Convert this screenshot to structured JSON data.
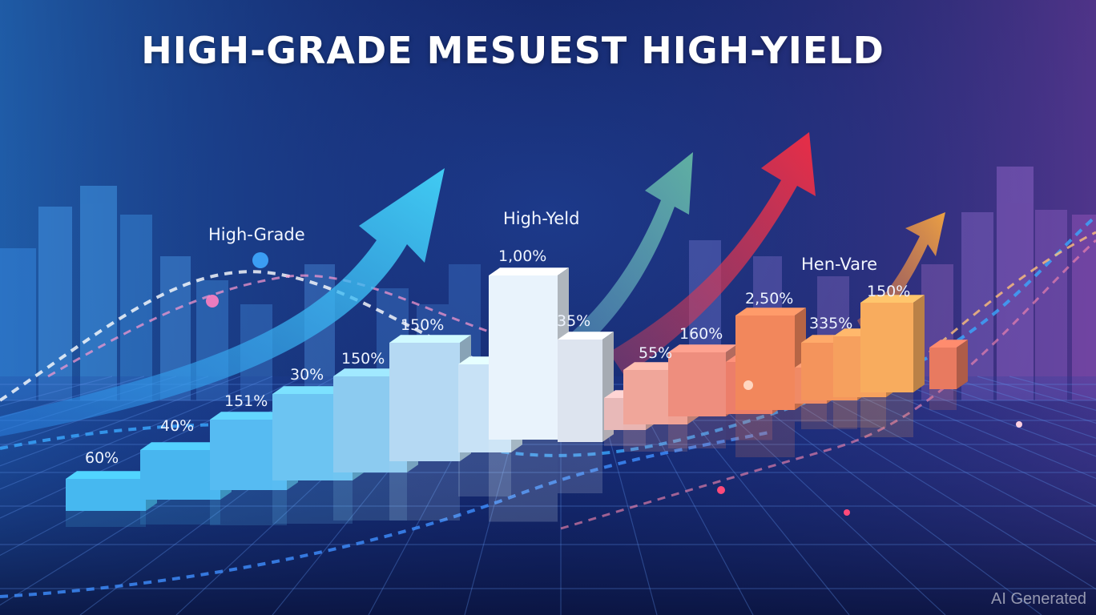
{
  "title": "HIGH-GRADE MESUEST HIGH-YIELD",
  "watermark": "AI Generated",
  "chart_data": {
    "type": "bar",
    "title": "HIGH-GRADE MESUEST HIGH-YIELD",
    "xlabel": "",
    "ylabel": "",
    "groups": [
      {
        "label": "High-Grade",
        "color": "#4fc3f7"
      },
      {
        "label": "High-Yeld",
        "color": "#e6f2ff"
      },
      {
        "label": "Hen-Vare",
        "color": "#ff8a5c"
      }
    ],
    "bar_labels": [
      "60%",
      "40%",
      "151%",
      "30%",
      "150%",
      "150%",
      "1,00%",
      "35%",
      "55%",
      "160%",
      "2,50%",
      "335%",
      "150%"
    ],
    "grid": true,
    "legend": "none"
  },
  "colors": {
    "bg_dark": "#0d1747",
    "bg_mid": "#1d3a8a",
    "arrow_cyan": "#3fd0ff",
    "arrow_teal": "#5fb8b0",
    "arrow_red": "#f03a4a",
    "arrow_orange": "#ff9a3c"
  }
}
